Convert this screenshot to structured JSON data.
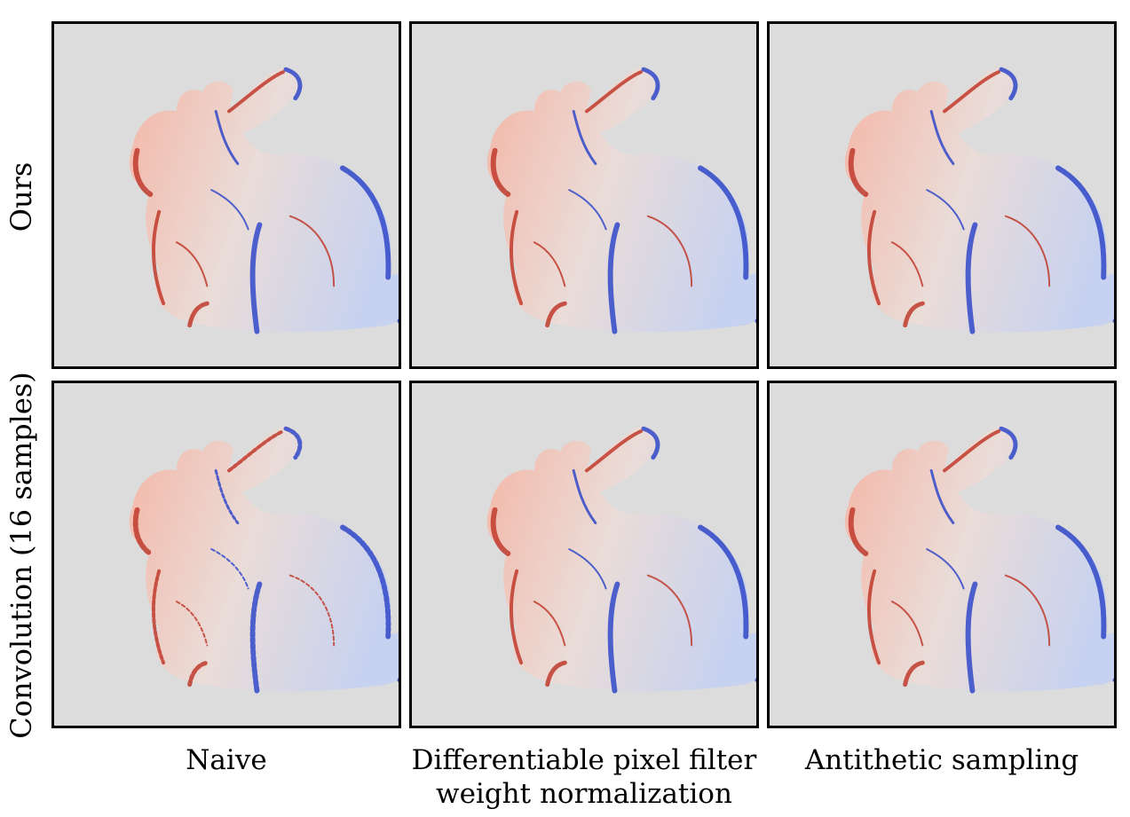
{
  "rows": [
    {
      "label": "Ours"
    },
    {
      "label": "Convolution (16 samples)"
    }
  ],
  "columns": [
    {
      "lines": [
        "Naive"
      ]
    },
    {
      "lines": [
        "Differentiable pixel filter",
        "weight normalization"
      ]
    },
    {
      "lines": [
        "Antithetic sampling"
      ]
    }
  ],
  "colors": {
    "background": "#dcdcdc",
    "positive": "#c0392b",
    "negative": "#3048c8",
    "border": "#000000"
  }
}
